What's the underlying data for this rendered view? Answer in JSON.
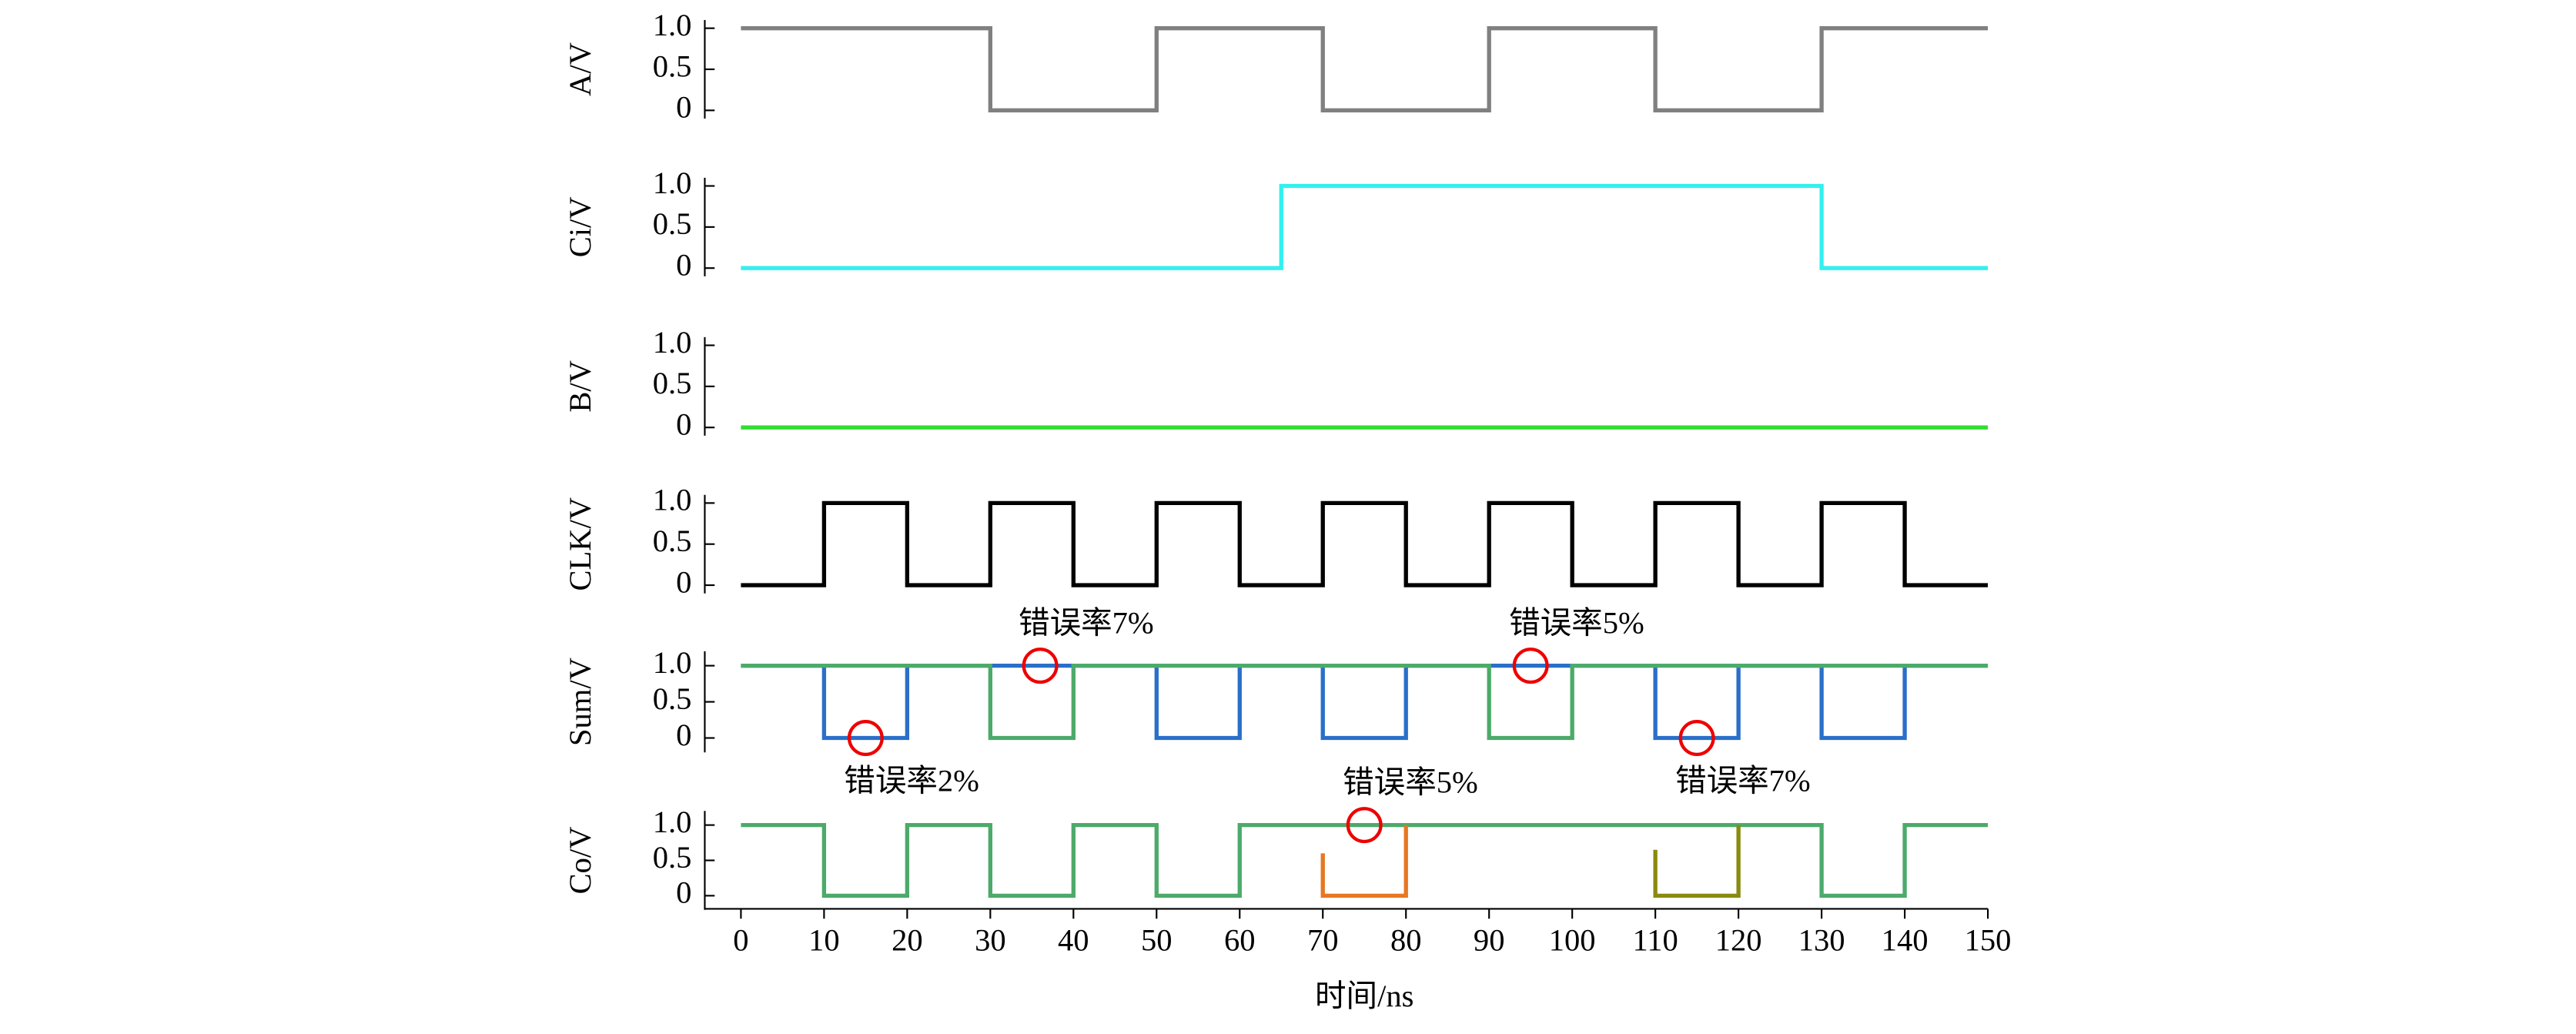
{
  "chart_data": [
    {
      "type": "line",
      "ylabel": "A/V",
      "xlim": [
        0,
        150
      ],
      "ylim": [
        -0.1,
        1.1
      ],
      "yticks": [
        0,
        0.5,
        {
          "value": 1,
          "label": "1.0"
        }
      ],
      "series": [
        {
          "color": "#808080",
          "x": [
            0,
            30,
            30,
            50,
            50,
            70,
            70,
            90,
            90,
            110,
            110,
            130,
            130,
            150
          ],
          "values": [
            1,
            1,
            0,
            0,
            1,
            1,
            0,
            0,
            1,
            1,
            0,
            0,
            1,
            1
          ]
        }
      ]
    },
    {
      "type": "line",
      "ylabel": "Ci/V",
      "xlim": [
        0,
        150
      ],
      "ylim": [
        -0.1,
        1.1
      ],
      "yticks": [
        0,
        0.5,
        {
          "value": 1,
          "label": "1.0"
        }
      ],
      "series": [
        {
          "color": "#33f0f0",
          "x": [
            0,
            65,
            65,
            130,
            130,
            150
          ],
          "values": [
            0,
            0,
            1,
            1,
            0,
            0
          ]
        }
      ]
    },
    {
      "type": "line",
      "ylabel": "B/V",
      "xlim": [
        0,
        150
      ],
      "ylim": [
        -0.1,
        1.1
      ],
      "yticks": [
        0,
        0.5,
        {
          "value": 1,
          "label": "1.0"
        }
      ],
      "series": [
        {
          "color": "#33dd33",
          "x": [
            0,
            150
          ],
          "values": [
            0,
            0
          ]
        }
      ]
    },
    {
      "type": "line",
      "ylabel": "CLK/V",
      "xlim": [
        0,
        150
      ],
      "ylim": [
        -0.1,
        1.1
      ],
      "yticks": [
        0,
        0.5,
        {
          "value": 1,
          "label": "1.0"
        }
      ],
      "series": [
        {
          "color": "#000000",
          "x": [
            0,
            10,
            10,
            20,
            20,
            30,
            30,
            40,
            40,
            50,
            50,
            60,
            60,
            70,
            70,
            80,
            80,
            90,
            90,
            100,
            100,
            110,
            110,
            120,
            120,
            130,
            130,
            140,
            140,
            150
          ],
          "values": [
            0,
            0,
            1,
            1,
            0,
            0,
            1,
            1,
            0,
            0,
            1,
            1,
            0,
            0,
            1,
            1,
            0,
            0,
            1,
            1,
            0,
            0,
            1,
            1,
            0,
            0,
            1,
            1,
            0,
            0
          ]
        }
      ]
    },
    {
      "type": "line",
      "ylabel": "Sum/V",
      "xlim": [
        0,
        150
      ],
      "ylim": [
        -0.2,
        1.2
      ],
      "yticks": [
        0,
        0.5,
        {
          "value": 1,
          "label": "1.0"
        }
      ],
      "series": [
        {
          "color": "#2a6fc9",
          "x": [
            0,
            10,
            10,
            20,
            20,
            50,
            50,
            60,
            60,
            70,
            70,
            80,
            80,
            110,
            110,
            120,
            120,
            130,
            130,
            140,
            140,
            150
          ],
          "values": [
            1,
            1,
            0,
            0,
            1,
            1,
            0,
            0,
            1,
            1,
            0,
            0,
            1,
            1,
            0,
            0,
            1,
            1,
            0,
            0,
            1,
            1
          ]
        },
        {
          "color": "#4caa6a",
          "x": [
            0,
            30,
            30,
            40,
            40,
            90,
            90,
            100,
            100,
            150
          ],
          "values": [
            1,
            1,
            0,
            0,
            1,
            1,
            0,
            0,
            1,
            1
          ]
        }
      ],
      "annotations": [
        {
          "text": "错误率7%",
          "x": 36,
          "y": 1
        },
        {
          "text": "错误率5%",
          "x": 95,
          "y": 1
        },
        {
          "text": "错误率2%",
          "x": 15,
          "y": 0
        },
        {
          "text": "错误率7%",
          "x": 115,
          "y": 0
        }
      ]
    },
    {
      "type": "line",
      "ylabel": "Co/V",
      "xlabel": "时间/ns",
      "xlim": [
        0,
        150
      ],
      "ylim": [
        -0.2,
        1.2
      ],
      "yticks": [
        0,
        0.5,
        {
          "value": 1,
          "label": "1.0"
        }
      ],
      "xticks": [
        0,
        10,
        20,
        30,
        40,
        50,
        60,
        70,
        80,
        90,
        100,
        110,
        120,
        130,
        140,
        150
      ],
      "series": [
        {
          "color": "#4caa6a",
          "x": [
            0,
            10,
            10,
            20,
            20,
            30,
            30,
            40,
            40,
            50,
            50,
            60,
            60,
            130,
            130,
            140,
            140,
            150
          ],
          "values": [
            1,
            1,
            0,
            0,
            1,
            1,
            0,
            0,
            1,
            1,
            0,
            0,
            1,
            1,
            0,
            0,
            1,
            1
          ]
        },
        {
          "color": "#e87722",
          "x": [
            70,
            70,
            80,
            80
          ],
          "values": [
            0.6,
            0,
            0,
            1
          ]
        },
        {
          "color": "#8a8a10",
          "x": [
            110,
            110,
            120,
            120
          ],
          "values": [
            0.65,
            0,
            0,
            1
          ]
        }
      ],
      "annotations": [
        {
          "text": "错误率5%",
          "x": 75,
          "y": 1
        }
      ]
    }
  ]
}
